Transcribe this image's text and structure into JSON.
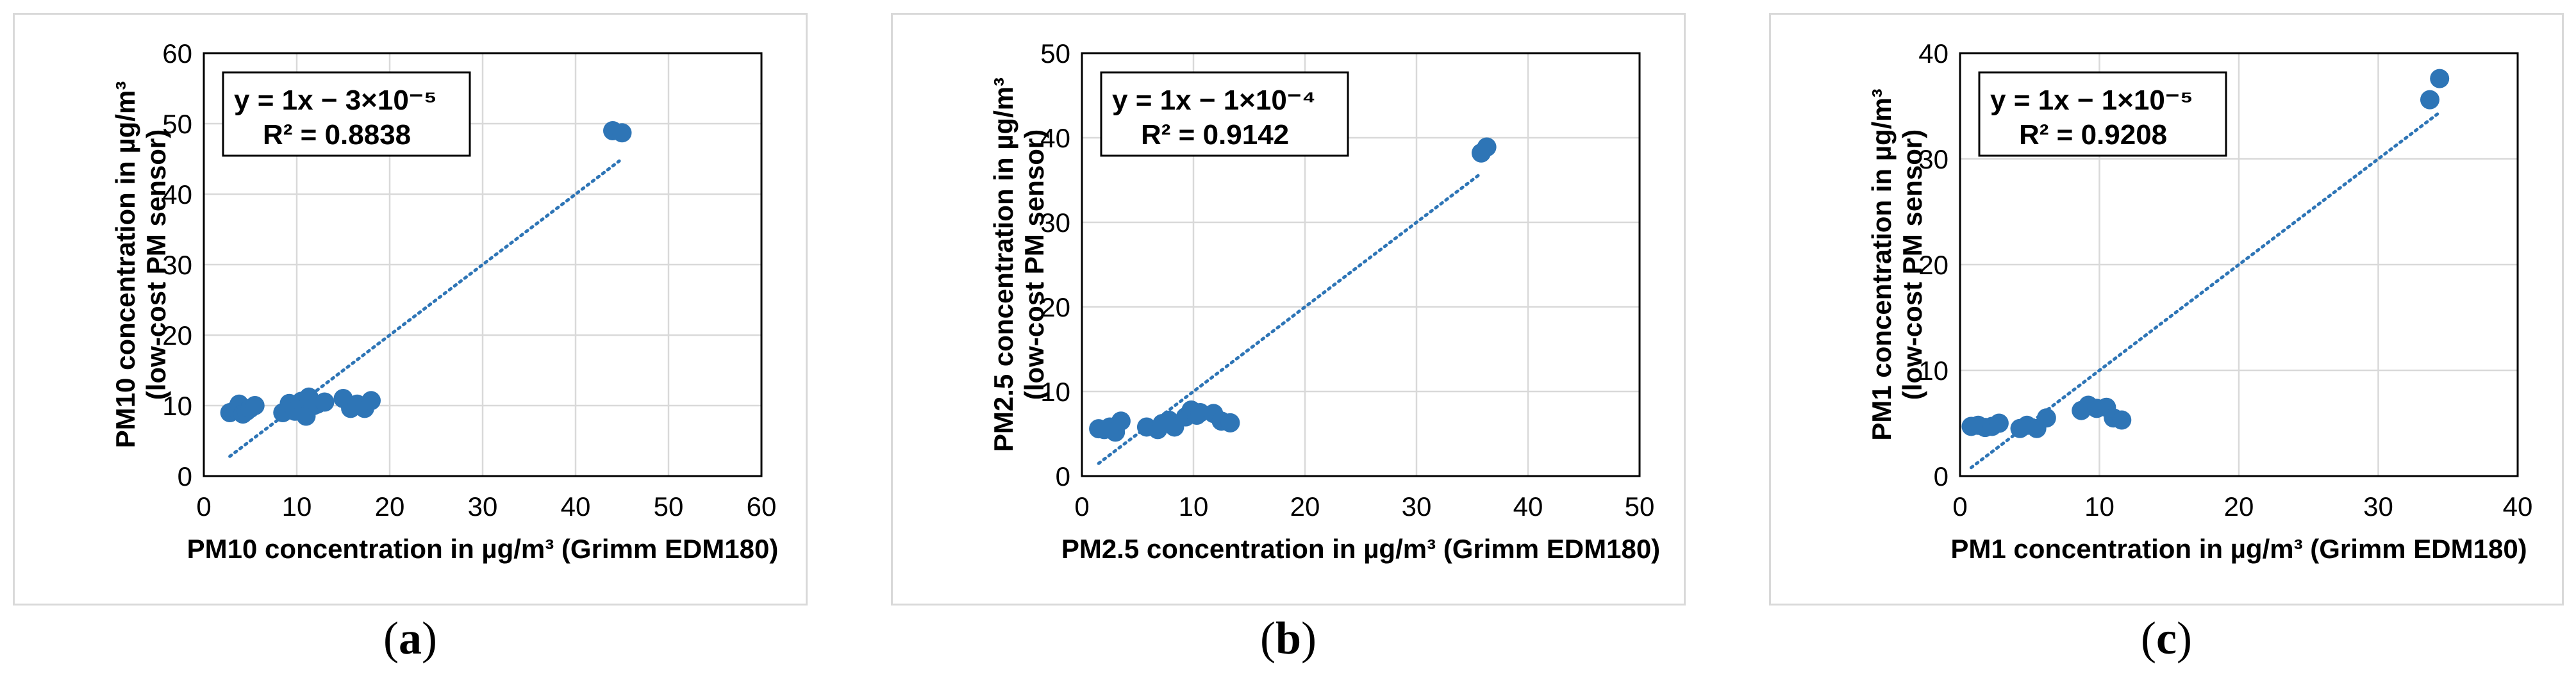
{
  "chart_data": [
    {
      "type": "scatter",
      "panel": "a",
      "xlabel": "PM10 concentration in µg/m³ (Grimm EDM180)",
      "ylabel_line1": "PM10 concentration in µg/m³",
      "ylabel_line2": "(low-cost PM sensor)",
      "xlim": [
        0,
        60
      ],
      "ylim": [
        0,
        60
      ],
      "xticks": [
        0,
        10,
        20,
        30,
        40,
        50,
        60
      ],
      "yticks": [
        0,
        10,
        20,
        30,
        40,
        50,
        60
      ],
      "grid": true,
      "equation": "y = 1x − 3×10⁻⁵",
      "r2": "R² = 0.8838",
      "trendline": {
        "x": [
          2.8,
          44.7
        ],
        "y": [
          2.8,
          44.7
        ]
      },
      "points": [
        [
          2.8,
          9.0
        ],
        [
          3.5,
          9.5
        ],
        [
          3.8,
          10.2
        ],
        [
          4.2,
          8.8
        ],
        [
          4.6,
          9.2
        ],
        [
          5.0,
          9.6
        ],
        [
          5.5,
          10.0
        ],
        [
          8.5,
          9.0
        ],
        [
          9.2,
          10.3
        ],
        [
          9.8,
          9.2
        ],
        [
          10.5,
          10.6
        ],
        [
          10.8,
          9.5
        ],
        [
          11.0,
          8.5
        ],
        [
          11.3,
          11.2
        ],
        [
          11.8,
          10.0
        ],
        [
          12.2,
          10.2
        ],
        [
          13.0,
          10.5
        ],
        [
          15.0,
          11.0
        ],
        [
          15.8,
          9.6
        ],
        [
          16.5,
          10.2
        ],
        [
          17.3,
          9.6
        ],
        [
          18.0,
          10.7
        ],
        [
          44.0,
          49.0
        ],
        [
          45.0,
          48.7
        ]
      ],
      "series_color": "#2e75b6",
      "caption": "a"
    },
    {
      "type": "scatter",
      "panel": "b",
      "xlabel": "PM2.5 concentration in µg/m³ (Grimm EDM180)",
      "ylabel_line1": "PM2.5 concentration in µg/m³",
      "ylabel_line2": "(low-cost PM sensor)",
      "xlim": [
        0,
        50
      ],
      "ylim": [
        0,
        50
      ],
      "xticks": [
        0,
        10,
        20,
        30,
        40,
        50
      ],
      "yticks": [
        0,
        10,
        20,
        30,
        40,
        50
      ],
      "grid": true,
      "equation": "y = 1x − 1×10⁻⁴",
      "r2": "R² = 0.9142",
      "trendline": {
        "x": [
          1.5,
          35.8
        ],
        "y": [
          1.5,
          35.8
        ]
      },
      "points": [
        [
          1.5,
          5.6
        ],
        [
          2.0,
          5.5
        ],
        [
          2.5,
          5.8
        ],
        [
          3.0,
          5.2
        ],
        [
          3.5,
          6.5
        ],
        [
          5.8,
          5.8
        ],
        [
          6.8,
          5.5
        ],
        [
          7.2,
          6.2
        ],
        [
          7.8,
          6.6
        ],
        [
          8.3,
          5.8
        ],
        [
          9.3,
          7.0
        ],
        [
          9.8,
          7.8
        ],
        [
          10.3,
          7.2
        ],
        [
          10.6,
          7.5
        ],
        [
          11.8,
          7.4
        ],
        [
          12.5,
          6.5
        ],
        [
          13.3,
          6.3
        ],
        [
          35.8,
          38.2
        ],
        [
          36.3,
          38.9
        ]
      ],
      "series_color": "#2e75b6",
      "caption": "b"
    },
    {
      "type": "scatter",
      "panel": "c",
      "xlabel": "PM1 concentration in µg/m³ (Grimm EDM180)",
      "ylabel_line1": "PM1 concentration in µg/m³",
      "ylabel_line2": "(low-cost PM sensor)",
      "xlim": [
        0,
        40
      ],
      "ylim": [
        0,
        40
      ],
      "xticks": [
        0,
        10,
        20,
        30,
        40
      ],
      "yticks": [
        0,
        10,
        20,
        30,
        40
      ],
      "grid": true,
      "equation": "y = 1x − 1×10⁻⁵",
      "r2": "R² = 0.9208",
      "trendline": {
        "x": [
          0.8,
          34.3
        ],
        "y": [
          0.8,
          34.3
        ]
      },
      "points": [
        [
          0.8,
          4.7
        ],
        [
          1.3,
          4.8
        ],
        [
          1.8,
          4.6
        ],
        [
          2.3,
          4.7
        ],
        [
          2.8,
          5.0
        ],
        [
          4.3,
          4.5
        ],
        [
          4.8,
          4.8
        ],
        [
          5.5,
          4.5
        ],
        [
          6.2,
          5.5
        ],
        [
          8.7,
          6.2
        ],
        [
          9.2,
          6.7
        ],
        [
          9.8,
          6.4
        ],
        [
          10.5,
          6.5
        ],
        [
          11.0,
          5.5
        ],
        [
          11.6,
          5.3
        ],
        [
          33.7,
          35.6
        ],
        [
          34.4,
          37.6
        ]
      ],
      "series_color": "#2e75b6",
      "caption": "c"
    }
  ]
}
